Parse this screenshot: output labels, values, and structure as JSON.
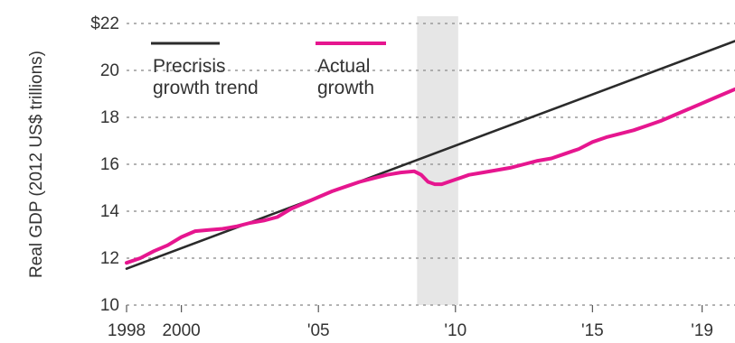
{
  "chart_data": {
    "type": "line",
    "title": "",
    "xlabel": "",
    "ylabel": "Real GDP (2012 US$ trillions)",
    "xlim": [
      1998,
      2020.2
    ],
    "ylim": [
      10,
      22
    ],
    "y_ticks": [
      {
        "value": 10,
        "label": "10"
      },
      {
        "value": 12,
        "label": "12"
      },
      {
        "value": 14,
        "label": "14"
      },
      {
        "value": 16,
        "label": "16"
      },
      {
        "value": 18,
        "label": "18"
      },
      {
        "value": 20,
        "label": "20"
      },
      {
        "value": 22,
        "label": "$22"
      }
    ],
    "x_ticks": [
      {
        "value": 1998,
        "label": "1998"
      },
      {
        "value": 2000,
        "label": "2000"
      },
      {
        "value": 2005,
        "label": "'05"
      },
      {
        "value": 2010,
        "label": "'10"
      },
      {
        "value": 2015,
        "label": "'15"
      },
      {
        "value": 2019,
        "label": "'19"
      }
    ],
    "grid": "horizontal dotted",
    "legend": "top-left",
    "recession_band": {
      "start": 2008.6,
      "end": 2010.1
    },
    "series": [
      {
        "name": "Precrisis growth trend",
        "color": "#2b2b2b",
        "x": [
          1998,
          2020.2
        ],
        "y": [
          11.55,
          21.25
        ]
      },
      {
        "name": "Actual growth",
        "color": "#e6168f",
        "x": [
          1998,
          1998.5,
          1999,
          1999.5,
          2000,
          2000.5,
          2001,
          2001.5,
          2002,
          2002.5,
          2003,
          2003.5,
          2004,
          2004.5,
          2005,
          2005.5,
          2006,
          2006.5,
          2007,
          2007.5,
          2008,
          2008.5,
          2008.75,
          2009,
          2009.25,
          2009.5,
          2009.75,
          2010,
          2010.5,
          2011,
          2011.5,
          2012,
          2012.5,
          2013,
          2013.5,
          2014,
          2014.5,
          2015,
          2015.5,
          2016,
          2016.5,
          2017,
          2017.5,
          2018,
          2018.5,
          2019,
          2019.5,
          2020.2
        ],
        "y": [
          11.8,
          12.0,
          12.3,
          12.55,
          12.9,
          13.15,
          13.2,
          13.25,
          13.35,
          13.5,
          13.6,
          13.75,
          14.1,
          14.35,
          14.6,
          14.85,
          15.05,
          15.25,
          15.4,
          15.55,
          15.65,
          15.7,
          15.55,
          15.25,
          15.15,
          15.15,
          15.25,
          15.35,
          15.55,
          15.65,
          15.75,
          15.85,
          16.0,
          16.15,
          16.25,
          16.45,
          16.65,
          16.95,
          17.15,
          17.3,
          17.45,
          17.65,
          17.85,
          18.1,
          18.35,
          18.6,
          18.85,
          19.2
        ]
      }
    ]
  }
}
